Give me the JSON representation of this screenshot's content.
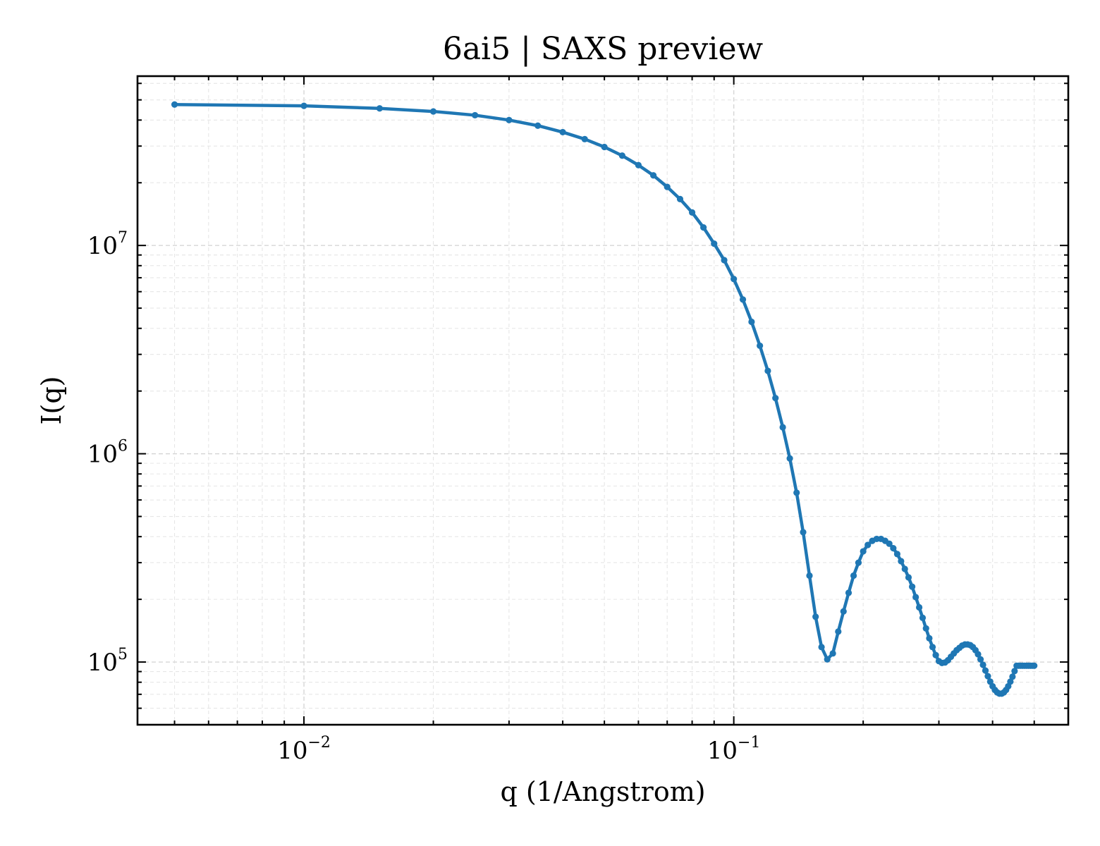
{
  "chart_data": {
    "type": "line",
    "title": "6ai5 | SAXS preview",
    "xlabel": "q (1/Angstrom)",
    "ylabel": "I(q)",
    "xscale": "log",
    "yscale": "log",
    "xlim": [
      0.0041,
      0.6
    ],
    "ylim": [
      50000,
      65000000
    ],
    "grid": true,
    "legend": "none",
    "x_ticks": [
      {
        "value": 0.01,
        "base": "10",
        "exp": "−2"
      },
      {
        "value": 0.1,
        "base": "10",
        "exp": "−1"
      }
    ],
    "y_ticks": [
      {
        "value": 100000,
        "base": "10",
        "exp": "5"
      },
      {
        "value": 1000000,
        "base": "10",
        "exp": "6"
      },
      {
        "value": 10000000,
        "base": "10",
        "exp": "7"
      }
    ],
    "colors": {
      "series": "#1f77b4"
    },
    "series": [
      {
        "x": [
          0.005,
          0.01,
          0.015,
          0.02,
          0.025,
          0.03,
          0.035,
          0.04,
          0.045,
          0.05,
          0.055,
          0.06,
          0.065,
          0.07,
          0.075,
          0.08,
          0.085,
          0.09,
          0.095,
          0.1,
          0.105,
          0.11,
          0.115,
          0.12,
          0.125,
          0.13,
          0.135,
          0.14,
          0.145,
          0.15,
          0.155,
          0.16,
          0.165,
          0.17,
          0.175,
          0.18,
          0.185,
          0.19,
          0.195,
          0.2,
          0.205,
          0.21,
          0.215,
          0.22,
          0.225,
          0.23,
          0.235,
          0.24,
          0.245,
          0.25,
          0.255,
          0.26,
          0.265,
          0.27,
          0.275,
          0.28,
          0.285,
          0.29,
          0.295,
          0.3,
          0.305,
          0.31,
          0.315,
          0.32,
          0.325,
          0.33,
          0.335,
          0.34,
          0.345,
          0.35,
          0.355,
          0.36,
          0.365,
          0.37,
          0.375,
          0.38,
          0.385,
          0.39,
          0.395,
          0.4,
          0.405,
          0.41,
          0.415,
          0.42,
          0.425,
          0.43,
          0.435,
          0.44,
          0.445,
          0.45,
          0.455,
          0.46,
          0.465,
          0.47,
          0.475,
          0.48,
          0.485,
          0.49,
          0.495,
          0.5
        ],
        "y": [
          47500000,
          46800000,
          45500000,
          44000000,
          42200000,
          40000000,
          37600000,
          35000000,
          32400000,
          29700000,
          27000000,
          24300000,
          21700000,
          19100000,
          16700000,
          14400000,
          12200000,
          10200000,
          8500000,
          6900000,
          5500000,
          4300000,
          3300000,
          2500000,
          1850000,
          1340000,
          950000,
          650000,
          420000,
          260000,
          165000,
          118000,
          103000,
          110000,
          140000,
          175000,
          215000,
          260000,
          300000,
          340000,
          365000,
          382000,
          390000,
          390000,
          382000,
          370000,
          352000,
          330000,
          305000,
          280000,
          255000,
          230000,
          205000,
          183000,
          163000,
          145000,
          130000,
          118000,
          108000,
          101000,
          99000,
          99500,
          102000,
          106000,
          110000,
          114000,
          117000,
          120000,
          121500,
          121500,
          120500,
          118000,
          114000,
          109000,
          103000,
          97000,
          91000,
          85500,
          80500,
          76500,
          73500,
          71500,
          70500,
          70500,
          71500,
          73500,
          76500,
          80500,
          85000,
          90500,
          96000,
          96000,
          96000,
          96000,
          96000,
          96000,
          96000,
          96000,
          96000,
          96000
        ]
      }
    ]
  }
}
